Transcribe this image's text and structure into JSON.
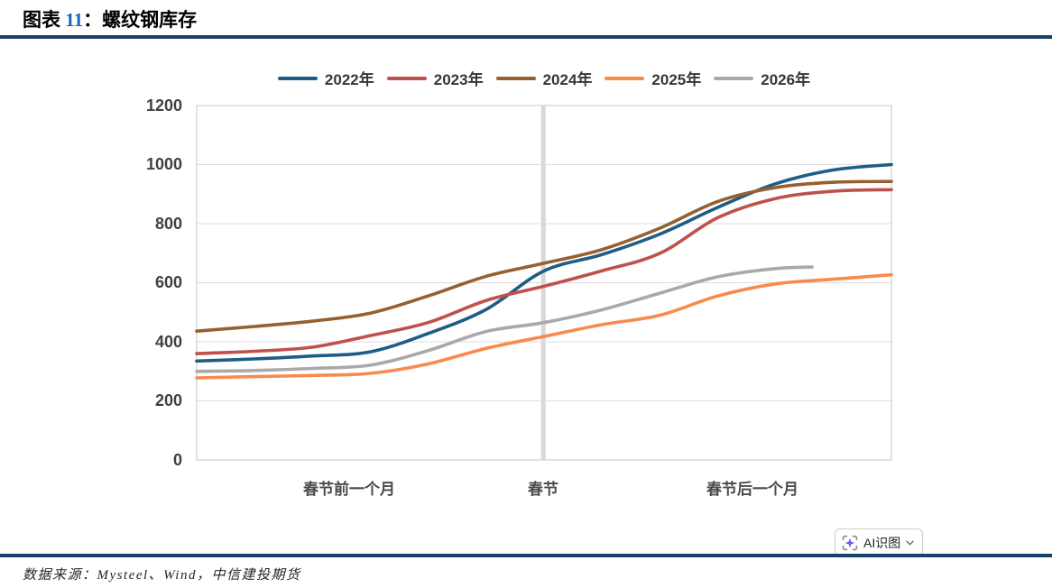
{
  "title": {
    "label": "图表",
    "number": "11",
    "colon": "：",
    "text": "螺纹钢库存"
  },
  "accent_colors": {
    "title_number": "#1565c0",
    "rule": "#17406b",
    "grid": "#dcdcdc",
    "band": "#d8d8d8",
    "border": "#d4d4d4"
  },
  "chart_data": {
    "type": "line",
    "title": "螺纹钢库存",
    "xlabel": "",
    "ylabel": "",
    "ylim": [
      0,
      1200
    ],
    "grid": "horizontal",
    "legend_position": "top",
    "y_axis": {
      "ticks": [
        0,
        200,
        400,
        600,
        800,
        1000,
        1200
      ]
    },
    "x_axis": {
      "tick_labels": [
        "春节前一个月",
        "春节",
        "春节后一个月"
      ],
      "tick_positions_pct": [
        22,
        49.9,
        80
      ]
    },
    "festival_band_pct": 49.9,
    "series": [
      {
        "name": "2022年",
        "color": "#1d5d86",
        "points": [
          [
            0,
            335
          ],
          [
            8.3,
            342
          ],
          [
            16.7,
            352
          ],
          [
            25,
            366
          ],
          [
            33.3,
            428
          ],
          [
            41.7,
            510
          ],
          [
            50,
            640
          ],
          [
            58.3,
            695
          ],
          [
            66.7,
            765
          ],
          [
            75,
            855
          ],
          [
            83.3,
            935
          ],
          [
            91.7,
            982
          ],
          [
            100,
            1000
          ]
        ]
      },
      {
        "name": "2023年",
        "color": "#c0504d",
        "points": [
          [
            0,
            360
          ],
          [
            8.3,
            368
          ],
          [
            16.7,
            382
          ],
          [
            25,
            421
          ],
          [
            33.3,
            465
          ],
          [
            41.7,
            540
          ],
          [
            50,
            588
          ],
          [
            58.3,
            640
          ],
          [
            66.7,
            700
          ],
          [
            75,
            820
          ],
          [
            83.3,
            885
          ],
          [
            91.7,
            910
          ],
          [
            100,
            915
          ]
        ]
      },
      {
        "name": "2024年",
        "color": "#96602f",
        "points": [
          [
            0,
            436
          ],
          [
            8.3,
            452
          ],
          [
            16.7,
            470
          ],
          [
            25,
            497
          ],
          [
            33.3,
            555
          ],
          [
            41.7,
            622
          ],
          [
            50,
            666
          ],
          [
            58.3,
            712
          ],
          [
            66.7,
            785
          ],
          [
            75,
            875
          ],
          [
            83.3,
            922
          ],
          [
            91.7,
            940
          ],
          [
            100,
            943
          ]
        ]
      },
      {
        "name": "2025年",
        "color": "#f88a4e",
        "points": [
          [
            0,
            278
          ],
          [
            8.3,
            282
          ],
          [
            16.7,
            286
          ],
          [
            25,
            293
          ],
          [
            33.3,
            325
          ],
          [
            41.7,
            378
          ],
          [
            50,
            418
          ],
          [
            58.3,
            458
          ],
          [
            66.7,
            490
          ],
          [
            75,
            555
          ],
          [
            83.3,
            596
          ],
          [
            91.7,
            612
          ],
          [
            100,
            627
          ]
        ]
      },
      {
        "name": "2026年",
        "color": "#a9a9a9",
        "points": [
          [
            0,
            300
          ],
          [
            8.3,
            303
          ],
          [
            16.7,
            310
          ],
          [
            25,
            321
          ],
          [
            33.3,
            370
          ],
          [
            41.7,
            435
          ],
          [
            50,
            465
          ],
          [
            58.3,
            508
          ],
          [
            66.7,
            565
          ],
          [
            75,
            620
          ],
          [
            83.3,
            648
          ],
          [
            88.6,
            653
          ]
        ]
      }
    ]
  },
  "ai_button": {
    "label": "AI识图",
    "icon": "ai-scan-sparkle-icon"
  },
  "source": {
    "text": "数据来源：Mysteel、Wind，中信建投期货"
  }
}
